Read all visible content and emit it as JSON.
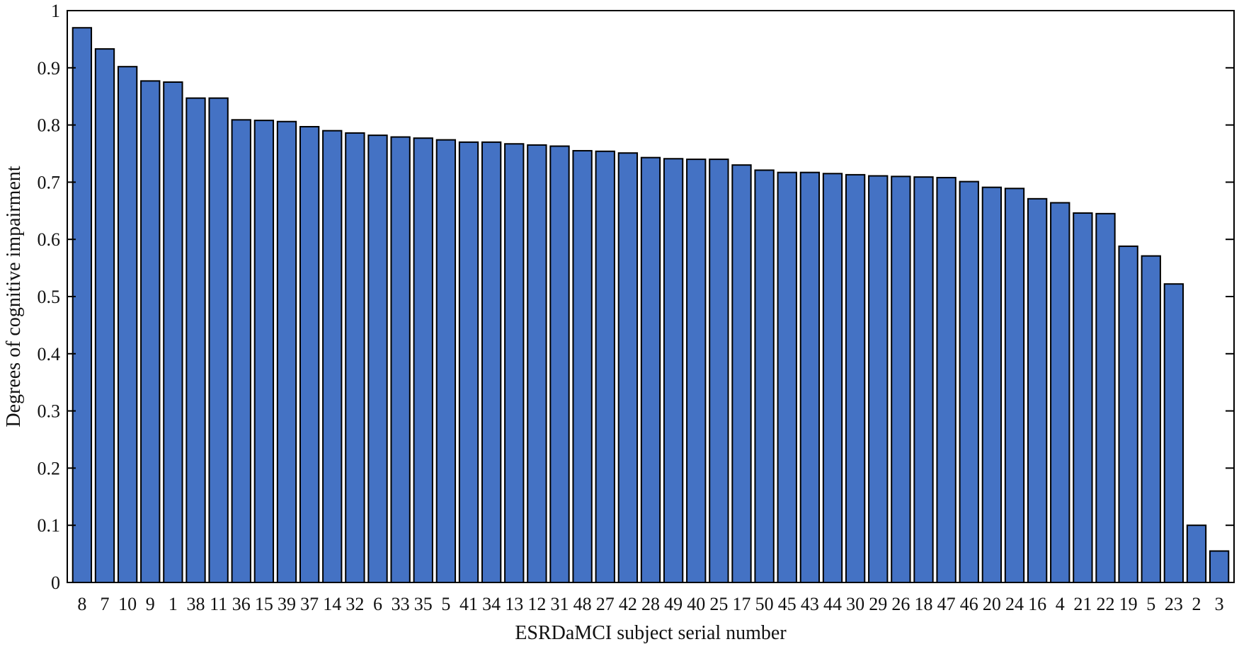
{
  "chart_data": {
    "type": "bar",
    "xlabel": "ESRDaMCI subject serial number",
    "ylabel": "Degrees of cognitive impairment",
    "ylim": [
      0,
      1
    ],
    "yticks": [
      "0",
      "0.1",
      "0.2",
      "0.3",
      "0.4",
      "0.5",
      "0.6",
      "0.7",
      "0.8",
      "0.9",
      "1"
    ],
    "grid": false,
    "bar_color": "#4472C4",
    "categories": [
      "8",
      "7",
      "10",
      "9",
      "1",
      "38",
      "11",
      "36",
      "15",
      "39",
      "37",
      "14",
      "32",
      "6",
      "33",
      "35",
      "5",
      "41",
      "34",
      "13",
      "12",
      "31",
      "48",
      "27",
      "42",
      "28",
      "49",
      "40",
      "25",
      "17",
      "50",
      "45",
      "43",
      "44",
      "30",
      "29",
      "26",
      "18",
      "47",
      "46",
      "20",
      "24",
      "16",
      "4",
      "21",
      "22",
      "19",
      "5",
      "23",
      "2",
      "3"
    ],
    "values": [
      0.97,
      0.933,
      0.902,
      0.877,
      0.875,
      0.847,
      0.847,
      0.809,
      0.808,
      0.806,
      0.797,
      0.79,
      0.786,
      0.782,
      0.779,
      0.777,
      0.774,
      0.77,
      0.77,
      0.767,
      0.765,
      0.763,
      0.755,
      0.754,
      0.751,
      0.743,
      0.741,
      0.74,
      0.74,
      0.73,
      0.721,
      0.717,
      0.717,
      0.715,
      0.713,
      0.711,
      0.71,
      0.709,
      0.708,
      0.701,
      0.691,
      0.689,
      0.671,
      0.664,
      0.646,
      0.645,
      0.588,
      0.571,
      0.522,
      0.1,
      0.055
    ]
  }
}
